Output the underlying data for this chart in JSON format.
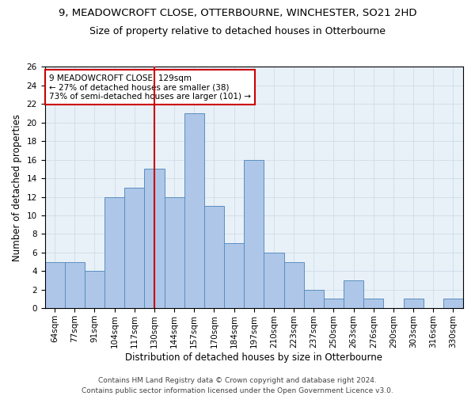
{
  "title1": "9, MEADOWCROFT CLOSE, OTTERBOURNE, WINCHESTER, SO21 2HD",
  "title2": "Size of property relative to detached houses in Otterbourne",
  "xlabel": "Distribution of detached houses by size in Otterbourne",
  "ylabel": "Number of detached properties",
  "bin_labels": [
    "64sqm",
    "77sqm",
    "91sqm",
    "104sqm",
    "117sqm",
    "130sqm",
    "144sqm",
    "157sqm",
    "170sqm",
    "184sqm",
    "197sqm",
    "210sqm",
    "223sqm",
    "237sqm",
    "250sqm",
    "263sqm",
    "276sqm",
    "290sqm",
    "303sqm",
    "316sqm",
    "330sqm"
  ],
  "bar_values": [
    5,
    5,
    4,
    12,
    13,
    15,
    12,
    21,
    11,
    7,
    16,
    6,
    5,
    2,
    1,
    3,
    1,
    0,
    1,
    0,
    1
  ],
  "bar_color": "#aec6e8",
  "bar_edgecolor": "#5a8fc0",
  "property_bin_index": 5,
  "annotation_box_text": "9 MEADOWCROFT CLOSE: 129sqm\n← 27% of detached houses are smaller (38)\n73% of semi-detached houses are larger (101) →",
  "annotation_box_color": "#ffffff",
  "annotation_box_edgecolor": "#cc0000",
  "vline_color": "#cc0000",
  "ylim": [
    0,
    26
  ],
  "yticks": [
    0,
    2,
    4,
    6,
    8,
    10,
    12,
    14,
    16,
    18,
    20,
    22,
    24,
    26
  ],
  "grid_color": "#d0dce8",
  "background_color": "#e8f0f8",
  "footer_line1": "Contains HM Land Registry data © Crown copyright and database right 2024.",
  "footer_line2": "Contains public sector information licensed under the Open Government Licence v3.0.",
  "title1_fontsize": 9.5,
  "title2_fontsize": 9,
  "axis_label_fontsize": 8.5,
  "tick_fontsize": 7.5,
  "annotation_fontsize": 7.5,
  "footer_fontsize": 6.5
}
